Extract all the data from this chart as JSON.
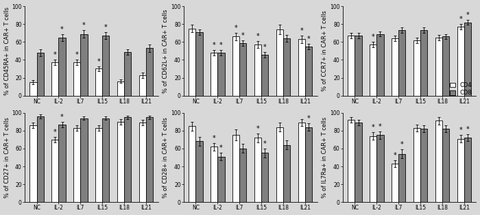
{
  "groups": [
    "NC",
    "IL-2",
    "IL7",
    "IL15",
    "IL18",
    "IL21"
  ],
  "panels": [
    {
      "ylabel": "% of CD45RA+ in CAR+ T cells",
      "cd4": [
        15,
        37,
        37,
        30,
        16,
        23
      ],
      "cd8": [
        48,
        65,
        69,
        67,
        49,
        53
      ],
      "cd4_err": [
        2,
        3,
        3,
        3,
        2,
        3
      ],
      "cd8_err": [
        4,
        4,
        4,
        4,
        3,
        4
      ],
      "cd4_sig": [
        false,
        true,
        true,
        true,
        false,
        false
      ],
      "cd8_sig": [
        false,
        true,
        true,
        true,
        false,
        false
      ],
      "ylim": [
        0,
        100
      ]
    },
    {
      "ylabel": "% of CD62L+ in CAR+ T cells",
      "cd4": [
        75,
        48,
        66,
        57,
        74,
        63
      ],
      "cd8": [
        71,
        48,
        59,
        46,
        64,
        55
      ],
      "cd4_err": [
        4,
        3,
        4,
        4,
        5,
        4
      ],
      "cd8_err": [
        3,
        3,
        3,
        3,
        4,
        3
      ],
      "cd4_sig": [
        false,
        true,
        true,
        true,
        false,
        true
      ],
      "cd8_sig": [
        false,
        true,
        true,
        true,
        false,
        true
      ],
      "ylim": [
        0,
        100
      ]
    },
    {
      "ylabel": "% of CCR7+ in CAR+ T cells",
      "cd4": [
        67,
        57,
        64,
        62,
        65,
        77
      ],
      "cd8": [
        67,
        69,
        73,
        73,
        66,
        82
      ],
      "cd4_err": [
        3,
        3,
        3,
        3,
        3,
        3
      ],
      "cd8_err": [
        3,
        3,
        3,
        3,
        3,
        3
      ],
      "cd4_sig": [
        false,
        true,
        false,
        false,
        false,
        true
      ],
      "cd8_sig": [
        false,
        false,
        false,
        false,
        false,
        true
      ],
      "ylim": [
        0,
        100
      ]
    },
    {
      "ylabel": "% of CD27+ in CAR+ T cells",
      "cd4": [
        86,
        70,
        83,
        83,
        90,
        89
      ],
      "cd8": [
        96,
        87,
        94,
        94,
        95,
        95
      ],
      "cd4_err": [
        3,
        3,
        3,
        3,
        3,
        3
      ],
      "cd8_err": [
        2,
        3,
        2,
        2,
        2,
        2
      ],
      "cd4_sig": [
        false,
        true,
        false,
        false,
        false,
        false
      ],
      "cd8_sig": [
        false,
        true,
        false,
        false,
        false,
        false
      ],
      "ylim": [
        0,
        100
      ]
    },
    {
      "ylabel": "% of CD28+ in CAR+ T cells",
      "cd4": [
        85,
        62,
        75,
        72,
        84,
        89
      ],
      "cd8": [
        68,
        51,
        60,
        55,
        64,
        84
      ],
      "cd4_err": [
        5,
        4,
        6,
        5,
        5,
        4
      ],
      "cd8_err": [
        5,
        4,
        5,
        5,
        5,
        4
      ],
      "cd4_sig": [
        false,
        true,
        false,
        true,
        false,
        false
      ],
      "cd8_sig": [
        false,
        true,
        false,
        true,
        false,
        true
      ],
      "ylim": [
        0,
        100
      ]
    },
    {
      "ylabel": "% of IL7Ra+ in CAR+ T cells",
      "cd4": [
        92,
        74,
        43,
        83,
        91,
        71
      ],
      "cd8": [
        89,
        75,
        54,
        82,
        82,
        72
      ],
      "cd4_err": [
        3,
        4,
        4,
        4,
        4,
        4
      ],
      "cd8_err": [
        3,
        4,
        5,
        4,
        4,
        4
      ],
      "cd4_sig": [
        false,
        true,
        true,
        false,
        false,
        true
      ],
      "cd8_sig": [
        false,
        true,
        true,
        false,
        false,
        true
      ],
      "ylim": [
        0,
        100
      ]
    }
  ],
  "cd4_color": "#ffffff",
  "cd8_color": "#7f7f7f",
  "bar_edge_color": "#000000",
  "bar_width": 0.32,
  "sig_marker": "*",
  "legend_labels": [
    "CD4",
    "CD8"
  ],
  "background_color": "#d8d8d8",
  "tick_fontsize": 5.5,
  "label_fontsize": 6,
  "sig_fontsize": 7
}
